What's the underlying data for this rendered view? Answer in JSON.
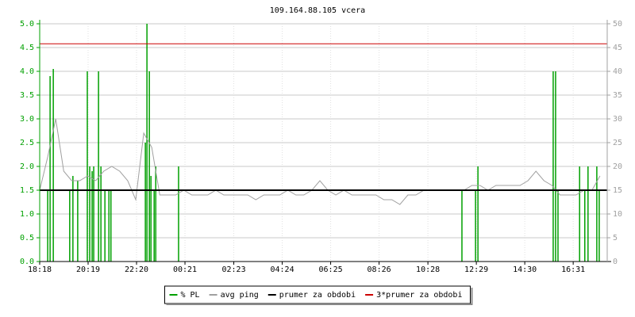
{
  "chart_data": {
    "type": "line",
    "title": "109.164.88.105 vcera",
    "xlim": [
      0,
      1418
    ],
    "xticks": [
      {
        "value": 0,
        "label": "18:18"
      },
      {
        "value": 121,
        "label": "20:19"
      },
      {
        "value": 242,
        "label": "22:20"
      },
      {
        "value": 363,
        "label": "00:21"
      },
      {
        "value": 485,
        "label": "02:23"
      },
      {
        "value": 606,
        "label": "04:24"
      },
      {
        "value": 727,
        "label": "06:25"
      },
      {
        "value": 848,
        "label": "08:26"
      },
      {
        "value": 970,
        "label": "10:28"
      },
      {
        "value": 1091,
        "label": "12:29"
      },
      {
        "value": 1212,
        "label": "14:30"
      },
      {
        "value": 1333,
        "label": "16:31"
      }
    ],
    "ylim": [
      0,
      5
    ],
    "yticks": [
      {
        "value": 0,
        "label": "0.0"
      },
      0.5,
      {
        "value": 1,
        "label": "1.0"
      },
      1.5,
      {
        "value": 2,
        "label": "2.0"
      },
      2.5,
      {
        "value": 3,
        "label": "3.0"
      },
      3.5,
      {
        "value": 4,
        "label": "4.0"
      },
      4.5,
      {
        "value": 5,
        "label": "5.0"
      }
    ],
    "y2lim": [
      0,
      50
    ],
    "y2ticks": [
      0,
      5,
      10,
      15,
      20,
      25,
      30,
      35,
      40,
      45,
      50
    ],
    "grid": true,
    "series": [
      {
        "name": "% PL",
        "color": "#00a000",
        "style": "spikes",
        "x": [
          20,
          26,
          34,
          75,
          83,
          95,
          119,
          125,
          131,
          135,
          147,
          153,
          163,
          173,
          178,
          264,
          268,
          274,
          278,
          286,
          290,
          347,
          1055,
          1089,
          1095,
          1283,
          1289,
          1295,
          1349,
          1362,
          1370,
          1392,
          1398
        ],
        "values": [
          1.5,
          3.9,
          4.05,
          1.5,
          1.8,
          1.7,
          4.0,
          2.0,
          1.9,
          2.0,
          4.0,
          2.0,
          1.5,
          1.5,
          1.5,
          2.5,
          5.0,
          4.0,
          1.8,
          1.5,
          2.0,
          2.0,
          1.5,
          1.5,
          2.0,
          4.0,
          4.0,
          1.5,
          2.0,
          1.5,
          2.0,
          2.0,
          1.5
        ]
      },
      {
        "name": "avg ping",
        "color": "#a0a0a0",
        "style": "line",
        "axis": "y2",
        "x": [
          0,
          20,
          40,
          60,
          80,
          100,
          120,
          140,
          160,
          180,
          200,
          220,
          240,
          260,
          280,
          300,
          320,
          340,
          360,
          380,
          400,
          420,
          440,
          460,
          480,
          500,
          520,
          540,
          560,
          580,
          600,
          620,
          640,
          660,
          680,
          700,
          720,
          740,
          760,
          780,
          800,
          820,
          840,
          860,
          880,
          900,
          920,
          940,
          960,
          980,
          1000,
          1020,
          1040,
          1060,
          1080,
          1100,
          1120,
          1140,
          1160,
          1180,
          1200,
          1220,
          1240,
          1260,
          1280,
          1300,
          1320,
          1340,
          1360,
          1380,
          1400
        ],
        "values": [
          15,
          22,
          30,
          19,
          17,
          17,
          18,
          17,
          19,
          20,
          19,
          17,
          13,
          27,
          24,
          14,
          14,
          14,
          15,
          14,
          14,
          14,
          15,
          14,
          14,
          14,
          14,
          13,
          14,
          14,
          14,
          15,
          14,
          14,
          15,
          17,
          15,
          14,
          15,
          14,
          14,
          14,
          14,
          13,
          13,
          12,
          14,
          14,
          15,
          15,
          15,
          15,
          15,
          15,
          16,
          16,
          15,
          16,
          16,
          16,
          16,
          17,
          19,
          17,
          16,
          14,
          14,
          14,
          15,
          15,
          18
        ]
      }
    ],
    "reference_lines": [
      {
        "name": "prumer za obdobi",
        "color": "#000000",
        "value": 15,
        "axis": "y2"
      },
      {
        "name": "3*prumer za obdobi",
        "color": "#cc0000",
        "value": 45.8,
        "axis": "y2"
      }
    ]
  }
}
